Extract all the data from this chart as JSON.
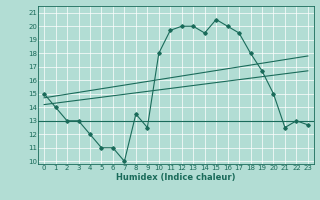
{
  "xlabel": "Humidex (Indice chaleur)",
  "ylabel": "",
  "bg_color": "#b2ddd4",
  "line_color": "#1a6b5a",
  "grid_color": "#ffffff",
  "xlim": [
    -0.5,
    23.5
  ],
  "ylim": [
    9.8,
    21.5
  ],
  "xticks": [
    0,
    1,
    2,
    3,
    4,
    5,
    6,
    7,
    8,
    9,
    10,
    11,
    12,
    13,
    14,
    15,
    16,
    17,
    18,
    19,
    20,
    21,
    22,
    23
  ],
  "yticks": [
    10,
    11,
    12,
    13,
    14,
    15,
    16,
    17,
    18,
    19,
    20,
    21
  ],
  "curve_x": [
    0,
    1,
    2,
    3,
    4,
    5,
    6,
    7,
    8,
    9,
    10,
    11,
    12,
    13,
    14,
    15,
    16,
    17,
    18,
    19,
    20,
    21,
    22,
    23
  ],
  "curve_y": [
    15,
    14,
    13,
    13,
    12,
    11,
    11,
    10,
    13.5,
    12.5,
    18,
    19.7,
    20,
    20,
    19.5,
    20.5,
    20,
    19.5,
    18,
    16.7,
    15,
    12.5,
    13,
    12.7
  ],
  "trend1_x": [
    0,
    23
  ],
  "trend1_y": [
    14.7,
    17.8
  ],
  "trend2_x": [
    0,
    23
  ],
  "trend2_y": [
    14.2,
    16.7
  ],
  "hline_y": 13,
  "xlabel_fontsize": 6,
  "tick_fontsize": 5,
  "marker_size": 1.8,
  "line_width": 0.8
}
